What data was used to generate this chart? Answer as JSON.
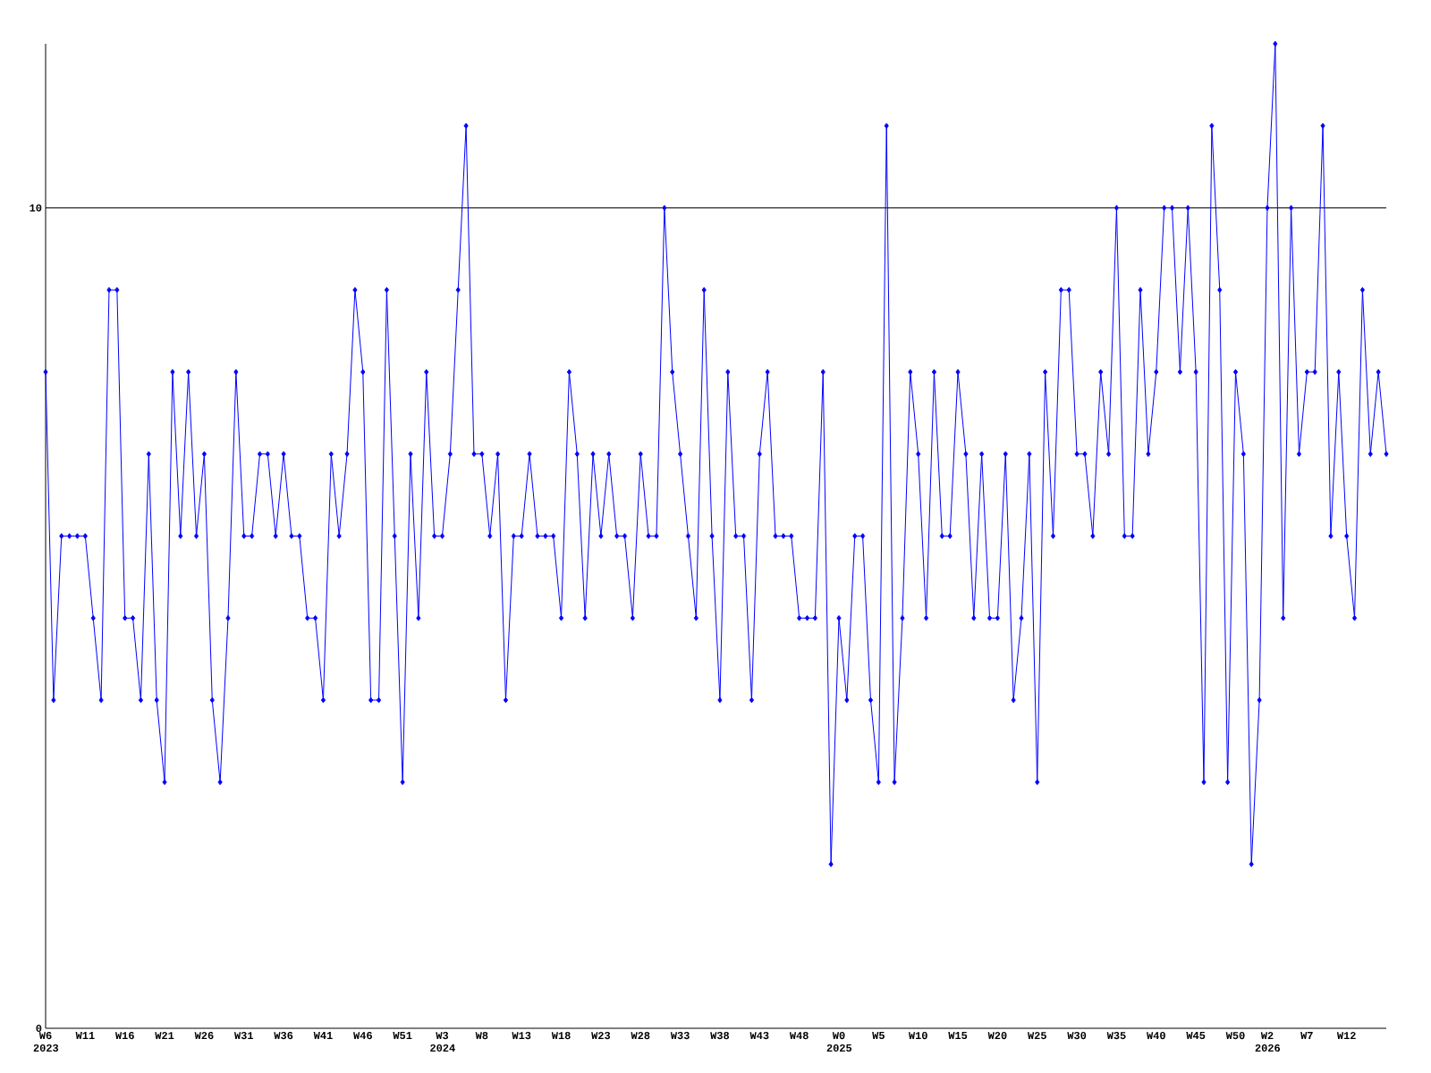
{
  "chart_data": {
    "type": "line",
    "categories": [
      "W6 2023",
      null,
      null,
      null,
      null,
      "W11",
      null,
      null,
      null,
      null,
      "W16",
      null,
      null,
      null,
      null,
      "W21",
      null,
      null,
      null,
      null,
      "W26",
      null,
      null,
      null,
      null,
      "W31",
      null,
      null,
      null,
      null,
      "W36",
      null,
      null,
      null,
      null,
      "W41",
      null,
      null,
      null,
      null,
      "W46",
      null,
      null,
      null,
      null,
      "W51",
      null,
      null,
      null,
      null,
      "W3 2024",
      null,
      null,
      null,
      null,
      "W8",
      null,
      null,
      null,
      null,
      "W13",
      null,
      null,
      null,
      null,
      "W18",
      null,
      null,
      null,
      null,
      "W23",
      null,
      null,
      null,
      null,
      "W28",
      null,
      null,
      null,
      null,
      "W33",
      null,
      null,
      null,
      null,
      "W38",
      null,
      null,
      null,
      null,
      "W43",
      null,
      null,
      null,
      null,
      "W48",
      null,
      null,
      null,
      null,
      "W0 2025",
      null,
      null,
      null,
      null,
      "W5",
      null,
      null,
      null,
      null,
      "W10",
      null,
      null,
      null,
      null,
      "W15",
      null,
      null,
      null,
      null,
      "W20",
      null,
      null,
      null,
      null,
      "W25",
      null,
      null,
      null,
      null,
      "W30",
      null,
      null,
      null,
      null,
      "W35",
      null,
      null,
      null,
      null,
      "W40",
      null,
      null,
      null,
      null,
      "W45",
      null,
      null,
      null,
      null,
      "W50",
      null,
      null,
      null,
      "W2 2026",
      null,
      null,
      null,
      null,
      "W7",
      null,
      null,
      null,
      null,
      "W12",
      null,
      null,
      null,
      null,
      null
    ],
    "series": [
      {
        "color": "#0000ff",
        "values": [
          8,
          4,
          6,
          6,
          6,
          6,
          5,
          4,
          9,
          9,
          5,
          5,
          4,
          7,
          4,
          3,
          8,
          6,
          8,
          6,
          7,
          4,
          3,
          5,
          8,
          6,
          6,
          7,
          7,
          6,
          7,
          6,
          6,
          5,
          5,
          4,
          7,
          6,
          7,
          9,
          8,
          4,
          4,
          9,
          6,
          3,
          7,
          5,
          8,
          6,
          6,
          7,
          9,
          11,
          7,
          7,
          6,
          7,
          4,
          6,
          6,
          7,
          6,
          6,
          6,
          5,
          8,
          7,
          5,
          7,
          6,
          7,
          6,
          6,
          5,
          7,
          6,
          6,
          10,
          8,
          7,
          6,
          5,
          9,
          6,
          4,
          8,
          6,
          6,
          4,
          7,
          8,
          6,
          6,
          6,
          5,
          5,
          5,
          8,
          2,
          5,
          4,
          6,
          6,
          4,
          3,
          11,
          3,
          5,
          8,
          7,
          5,
          8,
          6,
          6,
          8,
          7,
          5,
          7,
          5,
          5,
          7,
          4,
          5,
          7,
          3,
          8,
          6,
          9,
          9,
          7,
          7,
          6,
          8,
          7,
          10,
          6,
          6,
          9,
          7,
          8,
          10,
          10,
          8,
          10,
          8,
          3,
          11,
          9,
          3,
          8,
          7,
          2,
          4,
          10,
          12,
          5,
          10,
          7,
          8,
          8,
          11,
          6,
          8,
          6,
          5,
          9,
          7,
          8,
          7
        ]
      }
    ],
    "ylim": [
      0,
      12
    ],
    "yticks": [
      0,
      10
    ],
    "ref_lines": [
      {
        "axis": "y",
        "value": 10,
        "color": "#000000"
      }
    ],
    "marker": "diamond",
    "line_style": "solid",
    "grid": false
  }
}
